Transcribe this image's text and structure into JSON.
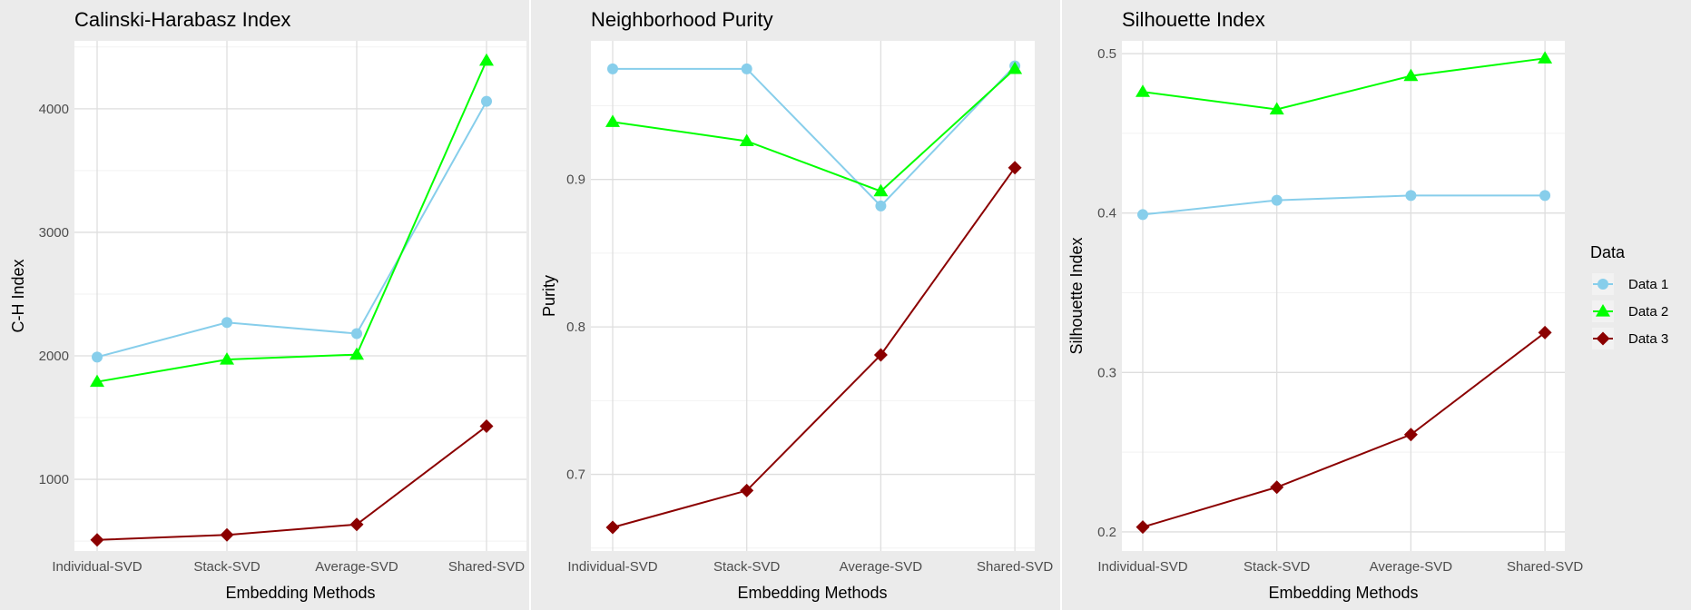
{
  "legend": {
    "title": "Data",
    "placement": "right",
    "entries": [
      {
        "label": "Data 1",
        "color": "#87CEEB",
        "shape": "circle"
      },
      {
        "label": "Data 2",
        "color": "#00FF00",
        "shape": "triangle"
      },
      {
        "label": "Data 3",
        "color": "#8B0000",
        "shape": "diamond"
      }
    ]
  },
  "colors": {
    "panel_background": "#EBEBEB",
    "grid": "#FFFFFF",
    "page_background": "#FFFFFF"
  },
  "chart_data": [
    {
      "type": "line",
      "title": "Calinski-Harabasz Index",
      "xlabel": "Embedding Methods",
      "ylabel": "C-H Index",
      "categories": [
        "Individual-SVD",
        "Stack-SVD",
        "Average-SVD",
        "Shared-SVD"
      ],
      "ylim": [
        420,
        4550
      ],
      "yticks": [
        1000,
        2000,
        3000,
        4000
      ],
      "yticklabels": [
        "1000",
        "2000",
        "3000",
        "4000"
      ],
      "grid": true,
      "series": [
        {
          "name": "Data 1",
          "values": [
            1990,
            2270,
            2180,
            4060
          ]
        },
        {
          "name": "Data 2",
          "values": [
            1790,
            1970,
            2010,
            4390
          ]
        },
        {
          "name": "Data 3",
          "values": [
            510,
            550,
            635,
            1430
          ]
        }
      ]
    },
    {
      "type": "line",
      "title": "Neighborhood Purity",
      "xlabel": "Embedding Methods",
      "ylabel": "Purity",
      "categories": [
        "Individual-SVD",
        "Stack-SVD",
        "Average-SVD",
        "Shared-SVD"
      ],
      "ylim": [
        0.648,
        0.994
      ],
      "yticks": [
        0.7,
        0.8,
        0.9
      ],
      "yticklabels": [
        "0.7",
        "0.8",
        "0.9"
      ],
      "grid": true,
      "series": [
        {
          "name": "Data 1",
          "values": [
            0.975,
            0.975,
            0.882,
            0.977
          ]
        },
        {
          "name": "Data 2",
          "values": [
            0.939,
            0.926,
            0.892,
            0.975
          ]
        },
        {
          "name": "Data 3",
          "values": [
            0.664,
            0.689,
            0.781,
            0.908
          ]
        }
      ]
    },
    {
      "type": "line",
      "title": "Silhouette Index",
      "xlabel": "Embedding Methods",
      "ylabel": "Silhouette Index",
      "categories": [
        "Individual-SVD",
        "Stack-SVD",
        "Average-SVD",
        "Shared-SVD"
      ],
      "ylim": [
        0.188,
        0.508
      ],
      "yticks": [
        0.2,
        0.3,
        0.4,
        0.5
      ],
      "yticklabels": [
        "0.2",
        "0.3",
        "0.4",
        "0.5"
      ],
      "grid": true,
      "series": [
        {
          "name": "Data 1",
          "values": [
            0.399,
            0.408,
            0.411,
            0.411
          ]
        },
        {
          "name": "Data 2",
          "values": [
            0.476,
            0.465,
            0.486,
            0.497
          ]
        },
        {
          "name": "Data 3",
          "values": [
            0.203,
            0.228,
            0.261,
            0.325
          ]
        }
      ]
    }
  ]
}
